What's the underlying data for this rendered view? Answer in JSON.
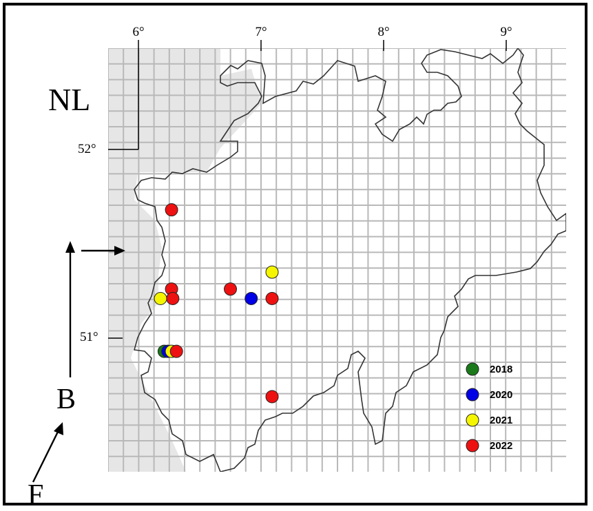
{
  "labels": {
    "country": "NL",
    "lon_ticks": [
      "6°",
      "7°",
      "8°",
      "9°"
    ],
    "lat_ticks": [
      "52°",
      "51°"
    ],
    "letter_b": "B",
    "letter_f": "F"
  },
  "legend": [
    {
      "label": "2018",
      "color": "#1a7a1a"
    },
    {
      "label": "2020",
      "color": "#0000e6"
    },
    {
      "label": "2021",
      "color": "#f5f500"
    },
    {
      "label": "2022",
      "color": "#ee1111"
    }
  ],
  "style": {
    "grid_color": "#b8b8b8",
    "outside_color": "#e6e6e6",
    "border_color": "#333333"
  },
  "records": [
    {
      "year": "2022",
      "lon": 6.27,
      "lat": 51.68
    },
    {
      "year": "2021",
      "lon": 7.09,
      "lat": 51.35
    },
    {
      "year": "2022",
      "lon": 6.27,
      "lat": 51.26
    },
    {
      "year": "2022",
      "lon": 6.75,
      "lat": 51.26
    },
    {
      "year": "2021",
      "lon": 6.18,
      "lat": 51.21
    },
    {
      "year": "2022",
      "lon": 6.28,
      "lat": 51.21
    },
    {
      "year": "2020",
      "lon": 6.92,
      "lat": 51.21
    },
    {
      "year": "2022",
      "lon": 7.09,
      "lat": 51.21
    },
    {
      "year": "2018",
      "lon": 6.21,
      "lat": 50.93
    },
    {
      "year": "2020",
      "lon": 6.24,
      "lat": 50.93
    },
    {
      "year": "2021",
      "lon": 6.27,
      "lat": 50.93
    },
    {
      "year": "2022",
      "lon": 6.31,
      "lat": 50.93
    },
    {
      "year": "2022",
      "lon": 7.09,
      "lat": 50.69
    }
  ]
}
